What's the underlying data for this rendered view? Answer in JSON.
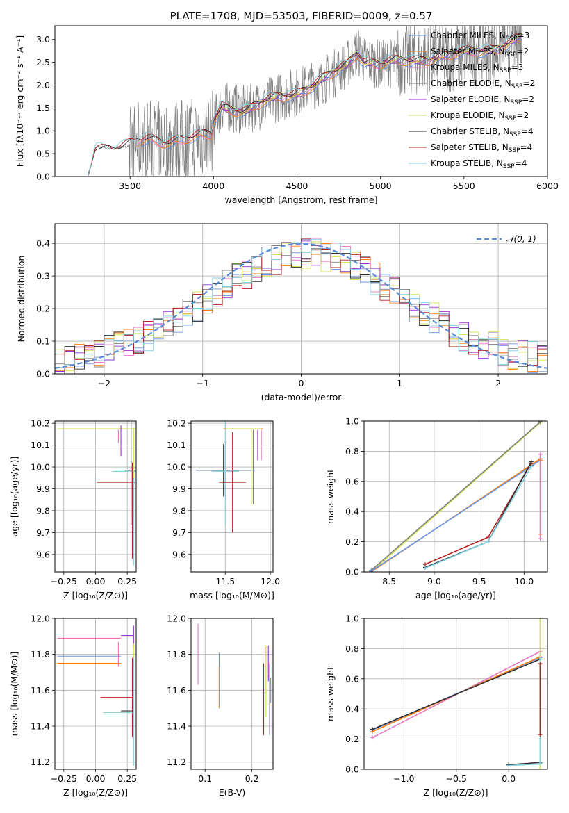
{
  "colors": {
    "chabrier_miles": "#6495ed",
    "salpeter_miles": "#ff7f0e",
    "kroupa_miles": "#e377c2",
    "chabrier_elodie": "#7f7f7f",
    "salpeter_elodie": "#9932cc",
    "kroupa_elodie": "#d4e157",
    "chabrier_stelib": "#2f2f2f",
    "salpeter_stelib": "#b22222",
    "kroupa_stelib": "#7fcfe0",
    "spectrum": "#808080",
    "gaussian": "#5b8bd6"
  },
  "chart_data": [
    {
      "id": "spectrum",
      "type": "line",
      "title": "PLATE=1708, MJD=53503, FIBERID=0009, z=0.57",
      "xlabel": "wavelength [Angstrom, rest frame]",
      "ylabel": "Flux [fλ10⁻¹⁷ erg cm⁻² s⁻¹ A⁻¹]",
      "xlim": [
        3050,
        6000
      ],
      "ylim": [
        0,
        3.3
      ],
      "xticks": [
        "3500",
        "4000",
        "4500",
        "5000",
        "5500",
        "6000"
      ],
      "yticks": [
        "0.0",
        "0.5",
        "1.0",
        "1.5",
        "2.0",
        "2.5",
        "3.0"
      ],
      "legend_position": "top-right",
      "legend": [
        {
          "label": "Chabrier MILES, N",
          "sub": "SSP",
          "tail": "=3",
          "color_key": "chabrier_miles"
        },
        {
          "label": "Salpeter MILES, N",
          "sub": "SSP",
          "tail": "=2",
          "color_key": "salpeter_miles"
        },
        {
          "label": "Kroupa MILES, N",
          "sub": "SSP",
          "tail": "=3",
          "color_key": "kroupa_miles"
        },
        {
          "label": "Chabrier ELODIE, N",
          "sub": "SSP",
          "tail": "=2",
          "color_key": "chabrier_elodie"
        },
        {
          "label": "Salpeter ELODIE, N",
          "sub": "SSP",
          "tail": "=2",
          "color_key": "salpeter_elodie"
        },
        {
          "label": "Kroupa ELODIE, N",
          "sub": "SSP",
          "tail": "=2",
          "color_key": "kroupa_elodie"
        },
        {
          "label": "Chabrier STELIB, N",
          "sub": "SSP",
          "tail": "=4",
          "color_key": "chabrier_stelib"
        },
        {
          "label": "Salpeter STELIB, N",
          "sub": "SSP",
          "tail": "=4",
          "color_key": "salpeter_stelib"
        },
        {
          "label": "Kroupa STELIB, N",
          "sub": "SSP",
          "tail": "=4",
          "color_key": "kroupa_stelib"
        }
      ],
      "model_continuum": {
        "x": [
          3250,
          3290,
          3300,
          3400,
          3500,
          3560,
          3600,
          3700,
          3800,
          3900,
          3990,
          4000,
          4050,
          4100,
          4200,
          4300,
          4400,
          4500,
          4600,
          4700,
          4800,
          4860,
          4900,
          5000,
          5100,
          5200,
          5300,
          5400,
          5500,
          5600,
          5700,
          5800,
          5850
        ],
        "y": [
          0.0,
          0.6,
          0.65,
          0.62,
          0.68,
          0.75,
          0.8,
          0.78,
          0.82,
          0.86,
          0.9,
          1.2,
          1.55,
          1.5,
          1.45,
          1.6,
          1.75,
          1.85,
          2.0,
          2.2,
          2.45,
          2.75,
          2.55,
          2.45,
          2.5,
          2.55,
          2.6,
          2.62,
          2.7,
          2.78,
          2.82,
          2.95,
          3.0
        ]
      }
    },
    {
      "id": "residuals",
      "type": "line",
      "xlabel": "(data-model)/error",
      "ylabel": "Normed distribution",
      "xlim": [
        -2.5,
        2.5
      ],
      "ylim": [
        0,
        0.46
      ],
      "xticks": [
        "−2",
        "−1",
        "0",
        "1",
        "2"
      ],
      "yticks": [
        "0.0",
        "0.1",
        "0.2",
        "0.3",
        "0.4"
      ],
      "legend_position": "top-right",
      "gaussian_label": "𝒩(0, 1)",
      "grid": true
    },
    {
      "id": "age-vs-Z",
      "type": "scatter",
      "xlabel": "Z [log₁₀(Z/Z⊙)]",
      "ylabel": "age  [log₁₀(age/yr)]",
      "xlim": [
        -0.32,
        0.32
      ],
      "ylim": [
        9.52,
        10.21
      ],
      "xticks": [
        "−0.25",
        "0.00",
        "0.25"
      ],
      "yticks": [
        "9.6",
        "9.7",
        "9.8",
        "9.9",
        "10.0",
        "10.1",
        "10.2"
      ],
      "grid": true,
      "points": [
        {
          "x": 0.3,
          "y": 10.175,
          "xerr": 0.6,
          "yerr": 0.0,
          "color_key": "salpeter_miles"
        },
        {
          "x": 0.3,
          "y": 10.175,
          "xerr": 0.6,
          "yerr": 0.0,
          "color_key": "kroupa_elodie"
        },
        {
          "x": 0.18,
          "y": 10.14,
          "xerr": 0.0,
          "yerr": 0.03,
          "color_key": "kroupa_miles"
        },
        {
          "x": 0.2,
          "y": 10.12,
          "xerr": 0.0,
          "yerr": 0.07,
          "color_key": "salpeter_elodie"
        },
        {
          "x": 0.28,
          "y": 9.985,
          "xerr": 0.05,
          "yerr": 0.25,
          "color_key": "chabrier_stelib"
        },
        {
          "x": 0.3,
          "y": 9.98,
          "xerr": 0.02,
          "yerr": 0.2,
          "color_key": "kroupa_elodie"
        },
        {
          "x": 0.25,
          "y": 9.98,
          "xerr": 0.12,
          "yerr": 0.0,
          "color_key": "kroupa_stelib"
        },
        {
          "x": 0.16,
          "y": 9.93,
          "xerr": 0.15,
          "yerr": 0.0,
          "color_key": "salpeter_stelib"
        },
        {
          "x": 0.29,
          "y": 9.8,
          "xerr": 0.0,
          "yerr": 0.22,
          "color_key": "salpeter_stelib"
        },
        {
          "x": 0.3,
          "y": 9.75,
          "xerr": 0.0,
          "yerr": 0.2,
          "color_key": "kroupa_stelib"
        }
      ]
    },
    {
      "id": "age-vs-mass",
      "type": "scatter",
      "xlabel": "mass [log₁₀(M/M⊙)]",
      "ylabel": "",
      "xlim": [
        11.12,
        12.03
      ],
      "ylim": [
        9.52,
        10.21
      ],
      "xticks": [
        "11.5",
        "12.0"
      ],
      "yticks": [
        "9.6",
        "9.7",
        "9.8",
        "9.9",
        "10.0",
        "10.1",
        "10.2"
      ],
      "grid": true,
      "points": [
        {
          "x": 11.5,
          "y": 9.985,
          "xerr": 0.33,
          "yerr": 0.12,
          "color_key": "chabrier_miles"
        },
        {
          "x": 11.48,
          "y": 9.985,
          "xerr": 0.3,
          "yerr": 0.12,
          "color_key": "chabrier_stelib"
        },
        {
          "x": 11.5,
          "y": 9.98,
          "xerr": 0.15,
          "yerr": 0.25,
          "color_key": "kroupa_stelib"
        },
        {
          "x": 11.58,
          "y": 9.93,
          "xerr": 0.15,
          "yerr": 0.23,
          "color_key": "salpeter_stelib"
        },
        {
          "x": 11.7,
          "y": 10.175,
          "xerr": 0.22,
          "yerr": 0.0,
          "color_key": "salpeter_miles"
        },
        {
          "x": 11.7,
          "y": 10.175,
          "xerr": 0.2,
          "yerr": 0.0,
          "color_key": "kroupa_elodie"
        },
        {
          "x": 11.86,
          "y": 10.1,
          "xerr": 0.0,
          "yerr": 0.07,
          "color_key": "salpeter_elodie"
        },
        {
          "x": 11.9,
          "y": 10.1,
          "xerr": 0.0,
          "yerr": 0.07,
          "color_key": "kroupa_miles"
        },
        {
          "x": 11.79,
          "y": 10.0,
          "xerr": 0.0,
          "yerr": 0.17,
          "color_key": "kroupa_elodie"
        },
        {
          "x": 11.81,
          "y": 10.0,
          "xerr": 0.0,
          "yerr": 0.17,
          "color_key": "chabrier_elodie"
        }
      ]
    },
    {
      "id": "weight-vs-age",
      "type": "line",
      "xlabel": "age  [log₁₀(age/yr)]",
      "ylabel": "mass weight",
      "xlim": [
        8.22,
        10.26
      ],
      "ylim": [
        0,
        1.0
      ],
      "xticks": [
        "8.5",
        "9.0",
        "9.5",
        "10.0"
      ],
      "yticks": [
        "0.0",
        "0.2",
        "0.4",
        "0.6",
        "0.8",
        "1.0"
      ],
      "grid": true,
      "series": [
        {
          "color_key": "kroupa_elodie",
          "x": [
            8.3,
            10.18
          ],
          "y": [
            0.0,
            0.99
          ]
        },
        {
          "color_key": "chabrier_elodie",
          "x": [
            8.3,
            10.18
          ],
          "y": [
            0.01,
            0.995
          ]
        },
        {
          "color_key": "salpeter_miles",
          "x": [
            8.3,
            10.18
          ],
          "y": [
            0.0,
            0.75
          ]
        },
        {
          "color_key": "chabrier_miles",
          "x": [
            8.3,
            10.18
          ],
          "y": [
            0.005,
            0.74
          ]
        },
        {
          "color_key": "salpeter_stelib",
          "x": [
            8.9,
            9.6,
            10.08
          ],
          "y": [
            0.05,
            0.23,
            0.72
          ]
        },
        {
          "color_key": "chabrier_stelib",
          "x": [
            8.9,
            9.6,
            10.08
          ],
          "y": [
            0.03,
            0.2,
            0.73
          ]
        },
        {
          "color_key": "kroupa_stelib",
          "x": [
            8.9,
            9.6,
            10.08
          ],
          "y": [
            0.025,
            0.2,
            0.7
          ]
        },
        {
          "color_key": "salpeter_miles",
          "x": [
            10.18,
            10.18
          ],
          "y": [
            0.25,
            0.74
          ]
        },
        {
          "color_key": "kroupa_miles",
          "x": [
            10.18,
            10.18
          ],
          "y": [
            0.22,
            0.78
          ]
        }
      ]
    },
    {
      "id": "mass-vs-Z",
      "type": "scatter",
      "xlabel": "Z [log₁₀(Z/Z⊙)]",
      "ylabel": "mass [log₁₀(M/M⊙)]",
      "xlim": [
        -0.32,
        0.32
      ],
      "ylim": [
        11.16,
        12.0
      ],
      "xticks": [
        "−0.25",
        "0.00",
        "0.25"
      ],
      "yticks": [
        "11.2",
        "11.4",
        "11.6",
        "11.8",
        "12.0"
      ],
      "grid": true,
      "points": [
        {
          "x": -0.05,
          "y": 11.89,
          "xerr": 0.25,
          "yerr": 0.0,
          "color_key": "kroupa_miles"
        },
        {
          "x": 0.25,
          "y": 11.905,
          "xerr": 0.05,
          "yerr": 0.0,
          "color_key": "salpeter_elodie"
        },
        {
          "x": 0.3,
          "y": 11.9,
          "xerr": 0.0,
          "yerr": 0.06,
          "color_key": "salpeter_elodie"
        },
        {
          "x": -0.05,
          "y": 11.79,
          "xerr": 0.25,
          "yerr": 0.0,
          "color_key": "chabrier_miles"
        },
        {
          "x": 0.3,
          "y": 11.8,
          "xerr": 0.0,
          "yerr": 0.06,
          "color_key": "kroupa_elodie"
        },
        {
          "x": -0.05,
          "y": 11.75,
          "xerr": 0.25,
          "yerr": 0.0,
          "color_key": "salpeter_miles"
        },
        {
          "x": 0.18,
          "y": 11.8,
          "xerr": 0.0,
          "yerr": 0.07,
          "color_key": "kroupa_miles"
        },
        {
          "x": 0.17,
          "y": 11.56,
          "xerr": 0.13,
          "yerr": 0.0,
          "color_key": "salpeter_stelib"
        },
        {
          "x": 0.29,
          "y": 11.56,
          "xerr": 0.0,
          "yerr": 0.22,
          "color_key": "salpeter_stelib"
        },
        {
          "x": 0.25,
          "y": 11.485,
          "xerr": 0.05,
          "yerr": 0.0,
          "color_key": "chabrier_stelib"
        },
        {
          "x": 0.18,
          "y": 11.475,
          "xerr": 0.12,
          "yerr": 0.0,
          "color_key": "kroupa_stelib"
        },
        {
          "x": 0.3,
          "y": 11.48,
          "xerr": 0.0,
          "yerr": 0.3,
          "color_key": "kroupa_stelib"
        }
      ]
    },
    {
      "id": "mass-vs-EBV",
      "type": "scatter",
      "xlabel": "E(B-V)",
      "ylabel": "",
      "xlim": [
        0.07,
        0.245
      ],
      "ylim": [
        11.16,
        12.0
      ],
      "xticks": [
        "0.1",
        "0.2"
      ],
      "yticks": [
        "11.2",
        "11.4",
        "11.6",
        "11.8",
        "12.0"
      ],
      "grid": true,
      "points": [
        {
          "x": 0.085,
          "y": 11.8,
          "xerr": 0.0,
          "yerr": 0.17,
          "color_key": "kroupa_miles"
        },
        {
          "x": 0.13,
          "y": 11.66,
          "xerr": 0.0,
          "yerr": 0.15,
          "color_key": "chabrier_miles"
        },
        {
          "x": 0.13,
          "y": 11.62,
          "xerr": 0.0,
          "yerr": 0.12,
          "color_key": "salpeter_miles"
        },
        {
          "x": 0.225,
          "y": 11.55,
          "xerr": 0.0,
          "yerr": 0.2,
          "color_key": "salpeter_stelib"
        },
        {
          "x": 0.228,
          "y": 11.72,
          "xerr": 0.0,
          "yerr": 0.12,
          "color_key": "salpeter_elodie"
        },
        {
          "x": 0.23,
          "y": 11.65,
          "xerr": 0.0,
          "yerr": 0.2,
          "color_key": "kroupa_elodie"
        },
        {
          "x": 0.235,
          "y": 11.75,
          "xerr": 0.0,
          "yerr": 0.1,
          "color_key": "salpeter_elodie"
        },
        {
          "x": 0.237,
          "y": 11.55,
          "xerr": 0.0,
          "yerr": 0.2,
          "color_key": "kroupa_stelib"
        },
        {
          "x": 0.24,
          "y": 11.6,
          "xerr": 0.0,
          "yerr": 0.07,
          "color_key": "chabrier_miles"
        }
      ]
    },
    {
      "id": "weight-vs-Z",
      "type": "line",
      "xlabel": "Z [log₁₀(Z/Z⊙)]",
      "ylabel": "mass weight",
      "xlim": [
        -1.38,
        0.37
      ],
      "ylim": [
        0,
        1.0
      ],
      "xticks": [
        "−1.0",
        "−0.5",
        "0.0"
      ],
      "yticks": [
        "0.0",
        "0.2",
        "0.4",
        "0.6",
        "0.8",
        "1.0"
      ],
      "grid": true,
      "series": [
        {
          "color_key": "kroupa_miles",
          "x": [
            -1.3,
            0.3
          ],
          "y": [
            0.21,
            0.78
          ]
        },
        {
          "color_key": "chabrier_miles",
          "x": [
            -1.3,
            0.3
          ],
          "y": [
            0.26,
            0.74
          ]
        },
        {
          "color_key": "salpeter_miles",
          "x": [
            -1.3,
            0.3
          ],
          "y": [
            0.25,
            0.745
          ]
        },
        {
          "color_key": "chabrier_stelib",
          "x": [
            -1.3,
            0.3
          ],
          "y": [
            0.265,
            0.73
          ]
        },
        {
          "color_key": "chabrier_stelib",
          "x": [
            0.0,
            0.3
          ],
          "y": [
            0.03,
            0.045
          ]
        },
        {
          "color_key": "kroupa_stelib",
          "x": [
            0.0,
            0.3
          ],
          "y": [
            0.025,
            0.035
          ]
        },
        {
          "color_key": "kroupa_elodie",
          "x": [
            0.3,
            0.3
          ],
          "y": [
            0.0,
            1.0
          ]
        },
        {
          "color_key": "kroupa_stelib",
          "x": [
            0.3,
            0.3
          ],
          "y": [
            0.04,
            0.73
          ]
        },
        {
          "color_key": "salpeter_stelib",
          "x": [
            0.3,
            0.3
          ],
          "y": [
            0.23,
            0.7
          ]
        }
      ]
    }
  ]
}
